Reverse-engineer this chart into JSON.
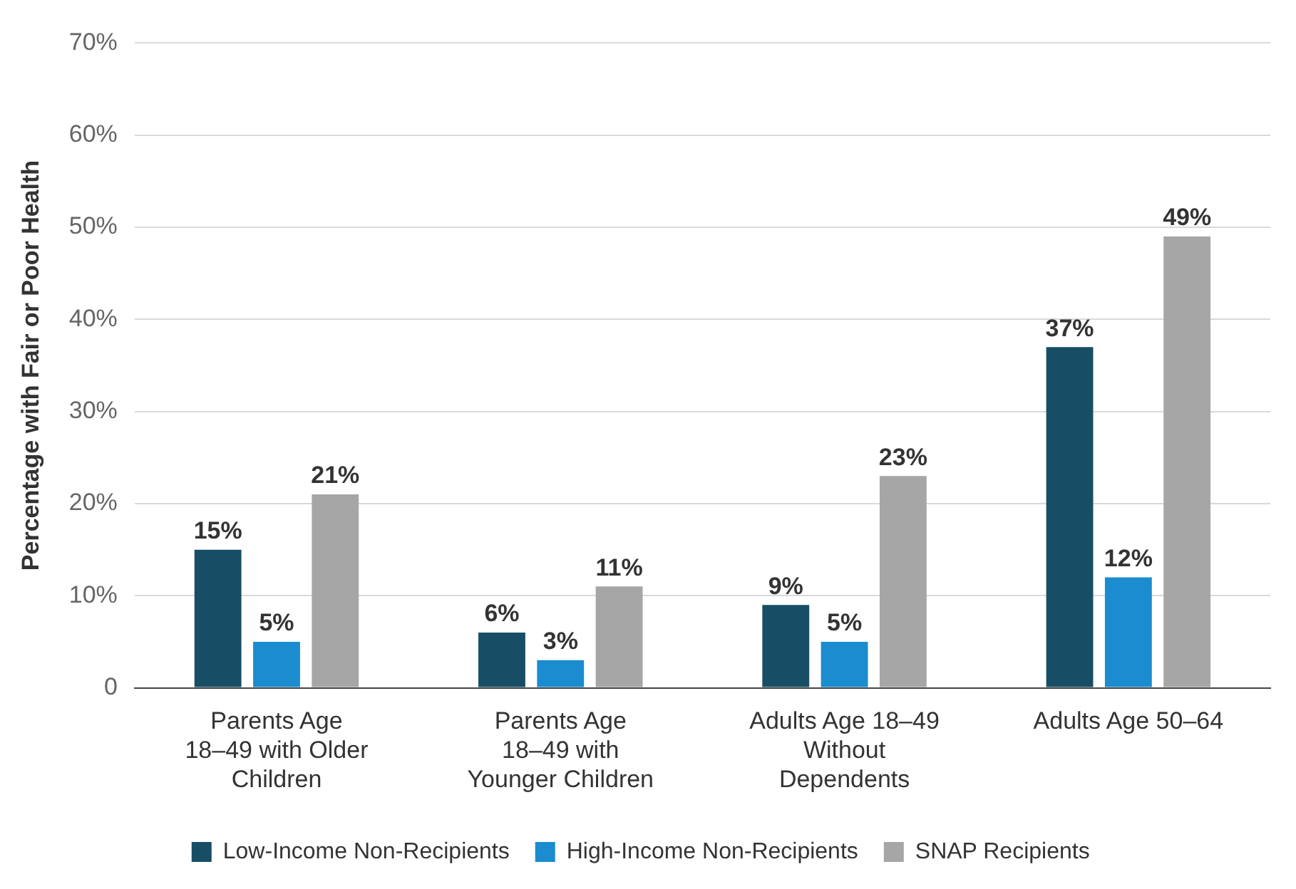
{
  "chart_data": {
    "type": "bar",
    "ylabel": "Percentage with Fair or Poor Health",
    "categories": [
      "Parents Age 18–49 with Older Children",
      "Parents Age 18–49 with Younger Children",
      "Adults Age 18–49 Without Dependents",
      "Adults Age 50–64"
    ],
    "series": [
      {
        "name": "Low-Income Non-Recipients",
        "color": "#174e66",
        "values": [
          15,
          6,
          9,
          37
        ],
        "value_labels": [
          "15%",
          "6%",
          "9%",
          "37%"
        ]
      },
      {
        "name": "High-Income Non-Recipients",
        "color": "#1a8ccf",
        "values": [
          5,
          3,
          5,
          12
        ],
        "value_labels": [
          "5%",
          "3%",
          "5%",
          "12%"
        ]
      },
      {
        "name": "SNAP Recipients",
        "color": "#a6a6a6",
        "values": [
          21,
          11,
          23,
          49
        ],
        "value_labels": [
          "21%",
          "11%",
          "23%",
          "49%"
        ]
      }
    ],
    "ylim": [
      0,
      70
    ],
    "yticks": [
      0,
      {
        "value": 10,
        "label": "10%"
      },
      {
        "value": 20,
        "label": "20%"
      },
      {
        "value": 30,
        "label": "30%"
      },
      {
        "value": 40,
        "label": "40%"
      },
      {
        "value": 50,
        "label": "50%"
      },
      {
        "value": 60,
        "label": "60%"
      },
      {
        "value": 70,
        "label": "70%"
      }
    ],
    "grid": "y",
    "legend": "bottom"
  }
}
